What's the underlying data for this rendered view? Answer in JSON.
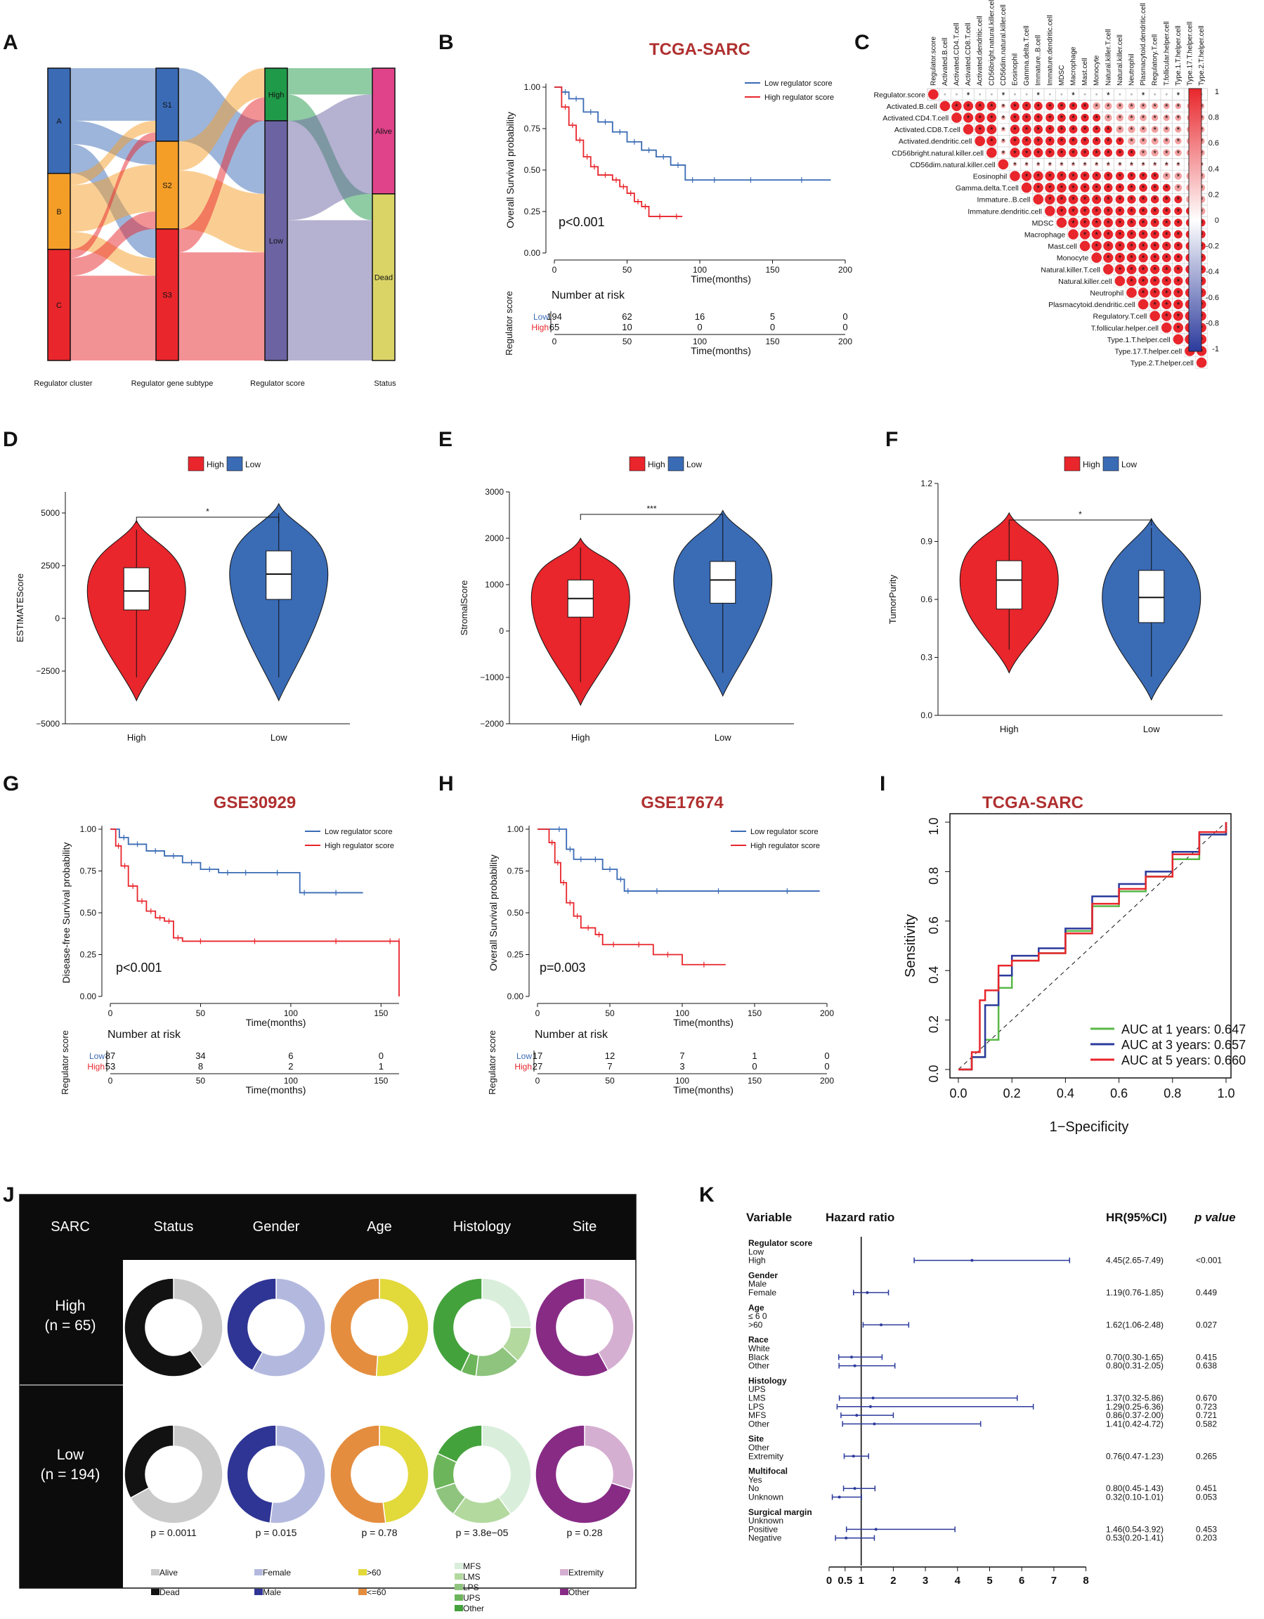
{
  "panels": {
    "A": {
      "label": "A",
      "axis_labels": [
        "Regulator cluster",
        "Regulator gene subtype",
        "Regulator score",
        "Status"
      ],
      "nodes": {
        "c1": [
          "A",
          "B",
          "C"
        ],
        "c2": [
          "S1",
          "S2",
          "S3"
        ],
        "c3": [
          "High",
          "Low"
        ],
        "c4": [
          "Alive",
          "Dead"
        ]
      }
    },
    "B": {
      "label": "B",
      "title": "TCGA-SARC",
      "ylabel": "Overall Survival probability",
      "xlabel": "Time(months)",
      "pvalue": "p<0.001",
      "legend": [
        "Low regulator score",
        "High regulator score"
      ],
      "risk_title": "Number at risk",
      "risk_ylabel": "Regulator score",
      "risk_groups": [
        "Low",
        "High"
      ],
      "risk_low": [
        "194",
        "62",
        "16",
        "5",
        "0"
      ],
      "risk_high": [
        "65",
        "10",
        "0",
        "0",
        "0"
      ],
      "xticks": [
        "0",
        "50",
        "100",
        "150",
        "200"
      ],
      "yticks": [
        "0.00",
        "0.25",
        "0.50",
        "0.75",
        "1.00"
      ]
    },
    "C": {
      "label": "C",
      "cells": [
        "Regulator.score",
        "Activated.B.cell",
        "Activated.CD4.T.cell",
        "Activated.CD8.T.cell",
        "Activated.dendritic.cell",
        "CD56bright.natural.killer.cell",
        "CD56dim.natural.killer.cell",
        "Eosinophil",
        "Gamma.delta.T.cell",
        "Immature..B.cell",
        "Immature.dendritic.cell",
        "MDSC",
        "Macrophage",
        "Mast.cell",
        "Monocyte",
        "Natural.killer.T.cell",
        "Natural.killer.cell",
        "Neutrophil",
        "Plasmacytoid.dendritic.cell",
        "Regulatory.T.cell",
        "T.follicular.helper.cell",
        "Type.1.T.helper.cell",
        "Type.17.T.helper.cell",
        "Type.2.T.helper.cell"
      ],
      "colorbar_ticks": [
        "1",
        "0.8",
        "0.6",
        "0.4",
        "0.2",
        "0",
        "-0.2",
        "-0.4",
        "-0.6",
        "-0.8",
        "-1"
      ]
    },
    "D": {
      "label": "D",
      "ylabel": "ESTIMATEScore",
      "sig": "*",
      "legend": [
        "High",
        "Low"
      ],
      "xcats": [
        "High",
        "Low"
      ],
      "yticks": [
        "5000",
        "2500",
        "0",
        "−2500",
        "−5000"
      ]
    },
    "E": {
      "label": "E",
      "ylabel": "StromalScore",
      "sig": "***",
      "legend": [
        "High",
        "Low"
      ],
      "xcats": [
        "High",
        "Low"
      ],
      "yticks": [
        "3000",
        "2000",
        "1000",
        "0",
        "−1000",
        "−2000"
      ]
    },
    "F": {
      "label": "F",
      "ylabel": "TumorPurity",
      "sig": "*",
      "legend": [
        "High",
        "Low"
      ],
      "xcats": [
        "High",
        "Low"
      ],
      "yticks": [
        "1.2",
        "0.9",
        "0.6",
        "0.3",
        "0.0"
      ]
    },
    "G": {
      "label": "G",
      "title": "GSE30929",
      "ylabel": "Disease-free Survival probability",
      "xlabel": "Time(months)",
      "pvalue": "p<0.001",
      "legend": [
        "Low regulator score",
        "High regulator score"
      ],
      "risk_title": "Number at risk",
      "risk_ylabel": "Regulator score",
      "risk_groups": [
        "Low",
        "High"
      ],
      "risk_low": [
        "87",
        "34",
        "6",
        "0"
      ],
      "risk_high": [
        "53",
        "8",
        "2",
        "1"
      ],
      "xticks": [
        "0",
        "50",
        "100",
        "150"
      ],
      "yticks": [
        "0.00",
        "0.25",
        "0.50",
        "0.75",
        "1.00"
      ]
    },
    "H": {
      "label": "H",
      "title": "GSE17674",
      "ylabel": "Overall Survival probability",
      "xlabel": "Time(months)",
      "pvalue": "p=0.003",
      "legend": [
        "Low regulator score",
        "High regulator score"
      ],
      "risk_title": "Number at risk",
      "risk_ylabel": "Regulator score",
      "risk_groups": [
        "Low",
        "High"
      ],
      "risk_low": [
        "17",
        "12",
        "7",
        "1",
        "0"
      ],
      "risk_high": [
        "27",
        "7",
        "3",
        "0",
        "0"
      ],
      "xticks": [
        "0",
        "50",
        "100",
        "150",
        "200"
      ],
      "yticks": [
        "0.00",
        "0.25",
        "0.50",
        "0.75",
        "1.00"
      ]
    },
    "I": {
      "label": "I",
      "title": "TCGA-SARC",
      "xlabel": "1−Specificity",
      "ylabel": "Sensitivity",
      "legend": [
        "AUC at 1 years: 0.647",
        "AUC at 3 years: 0.657",
        "AUC at 5 years: 0.660"
      ],
      "ticks": [
        "0.0",
        "0.2",
        "0.4",
        "0.6",
        "0.8",
        "1.0"
      ]
    },
    "J": {
      "label": "J",
      "header": [
        "SARC",
        "Status",
        "Gender",
        "Age",
        "Histology",
        "Site"
      ],
      "rows": [
        [
          "High",
          "(n = 65)"
        ],
        [
          "Low",
          "(n = 194)"
        ]
      ],
      "pvalues": [
        "p = 0.0011",
        "p = 0.015",
        "p = 0.78",
        "p = 3.8e−05",
        "p = 0.28"
      ],
      "legend_status": [
        "Alive",
        "Dead"
      ],
      "legend_gender": [
        "Female",
        "Male"
      ],
      "legend_age": [
        ">60",
        "<=60"
      ],
      "legend_hist": [
        "MFS",
        "LMS",
        "LPS",
        "UPS",
        "Other"
      ],
      "legend_site": [
        "Extremity",
        "Other"
      ]
    },
    "K": {
      "label": "K",
      "headers": [
        "Variable",
        "Hazard ratio",
        "HR(95%CI)",
        "p value"
      ],
      "xticks": [
        "0",
        "0.5",
        "1",
        "2",
        "3",
        "4",
        "5",
        "6",
        "7",
        "8"
      ]
    }
  },
  "chart_data": [
    {
      "panel": "B",
      "type": "line",
      "title": "TCGA-SARC",
      "xlabel": "Time(months)",
      "ylabel": "Overall Survival probability",
      "xlim": [
        0,
        200
      ],
      "ylim": [
        0,
        1
      ],
      "series": [
        {
          "name": "Low regulator score",
          "color": "#3a6bb5",
          "x": [
            0,
            5,
            10,
            20,
            30,
            40,
            50,
            60,
            70,
            80,
            90,
            100,
            120,
            150,
            190
          ],
          "y": [
            1,
            0.97,
            0.93,
            0.85,
            0.79,
            0.73,
            0.67,
            0.62,
            0.58,
            0.53,
            0.44,
            0.44,
            0.44,
            0.44,
            0.44
          ]
        },
        {
          "name": "High regulator score",
          "color": "#e8262c",
          "x": [
            0,
            5,
            10,
            15,
            20,
            25,
            30,
            40,
            45,
            50,
            55,
            60,
            65,
            80,
            88
          ],
          "y": [
            1,
            0.88,
            0.77,
            0.68,
            0.58,
            0.52,
            0.47,
            0.44,
            0.4,
            0.36,
            0.31,
            0.28,
            0.22,
            0.22,
            0.22
          ]
        }
      ]
    },
    {
      "panel": "G",
      "type": "line",
      "title": "GSE30929",
      "xlabel": "Time(months)",
      "ylabel": "Disease-free Survival probability",
      "xlim": [
        0,
        160
      ],
      "ylim": [
        0,
        1
      ],
      "series": [
        {
          "name": "Low regulator score",
          "color": "#3a6bb5",
          "x": [
            0,
            5,
            10,
            20,
            30,
            40,
            50,
            60,
            70,
            80,
            105,
            110,
            140
          ],
          "y": [
            1,
            0.95,
            0.91,
            0.87,
            0.84,
            0.8,
            0.76,
            0.74,
            0.74,
            0.74,
            0.62,
            0.62,
            0.62
          ]
        },
        {
          "name": "High regulator score",
          "color": "#e8262c",
          "x": [
            0,
            3,
            6,
            10,
            15,
            20,
            25,
            30,
            35,
            40,
            60,
            100,
            150,
            160,
            160
          ],
          "y": [
            1,
            0.9,
            0.78,
            0.66,
            0.57,
            0.51,
            0.47,
            0.45,
            0.35,
            0.33,
            0.33,
            0.33,
            0.33,
            0.33,
            0
          ]
        }
      ]
    },
    {
      "panel": "H",
      "type": "line",
      "title": "GSE17674",
      "xlabel": "Time(months)",
      "ylabel": "Overall Survival probability",
      "xlim": [
        0,
        200
      ],
      "ylim": [
        0,
        1
      ],
      "series": [
        {
          "name": "Low regulator score",
          "color": "#3a6bb5",
          "x": [
            0,
            10,
            20,
            25,
            35,
            45,
            55,
            60,
            65,
            100,
            150,
            195
          ],
          "y": [
            1,
            1,
            0.88,
            0.82,
            0.82,
            0.76,
            0.7,
            0.63,
            0.63,
            0.63,
            0.63,
            0.63
          ]
        },
        {
          "name": "High regulator score",
          "color": "#e8262c",
          "x": [
            0,
            8,
            12,
            16,
            20,
            25,
            30,
            40,
            45,
            60,
            80,
            100,
            130
          ],
          "y": [
            1,
            0.92,
            0.8,
            0.68,
            0.56,
            0.48,
            0.41,
            0.37,
            0.31,
            0.31,
            0.25,
            0.19,
            0.19
          ]
        }
      ]
    },
    {
      "panel": "I",
      "type": "line",
      "title": "TCGA-SARC",
      "xlabel": "1−Specificity",
      "ylabel": "Sensitivity",
      "xlim": [
        0,
        1
      ],
      "ylim": [
        0,
        1
      ],
      "series": [
        {
          "name": "AUC at 1 years: 0.647",
          "color": "#59b847",
          "x": [
            0,
            0.05,
            0.1,
            0.15,
            0.2,
            0.3,
            0.4,
            0.5,
            0.6,
            0.7,
            0.8,
            0.9,
            1
          ],
          "y": [
            0,
            0.05,
            0.12,
            0.33,
            0.44,
            0.47,
            0.56,
            0.66,
            0.72,
            0.78,
            0.85,
            0.95,
            1
          ]
        },
        {
          "name": "AUC at 3 years: 0.657",
          "color": "#2b3a9c",
          "x": [
            0,
            0.05,
            0.1,
            0.15,
            0.2,
            0.3,
            0.4,
            0.5,
            0.6,
            0.7,
            0.8,
            0.9,
            1
          ],
          "y": [
            0,
            0.05,
            0.26,
            0.38,
            0.46,
            0.49,
            0.57,
            0.7,
            0.75,
            0.8,
            0.88,
            0.95,
            1
          ]
        },
        {
          "name": "AUC at 5 years: 0.660",
          "color": "#e8262c",
          "x": [
            0,
            0.05,
            0.08,
            0.1,
            0.15,
            0.2,
            0.3,
            0.4,
            0.5,
            0.6,
            0.7,
            0.8,
            0.9,
            1
          ],
          "y": [
            0,
            0.07,
            0.28,
            0.32,
            0.42,
            0.44,
            0.47,
            0.55,
            0.67,
            0.73,
            0.78,
            0.87,
            0.96,
            1
          ]
        }
      ]
    },
    {
      "panel": "D",
      "type": "violin",
      "ylabel": "ESTIMATEScore",
      "ylim": [
        -5000,
        6000
      ],
      "categories": [
        "High",
        "Low"
      ],
      "boxes": [
        {
          "q1": 400,
          "median": 1300,
          "q3": 2400,
          "min": -2800,
          "max": 4200
        },
        {
          "q1": 900,
          "median": 2100,
          "q3": 3200,
          "min": -2800,
          "max": 5000
        }
      ]
    },
    {
      "panel": "E",
      "type": "violin",
      "ylabel": "StromalScore",
      "ylim": [
        -2000,
        3000
      ],
      "categories": [
        "High",
        "Low"
      ],
      "boxes": [
        {
          "q1": 300,
          "median": 700,
          "q3": 1100,
          "min": -1100,
          "max": 1800
        },
        {
          "q1": 600,
          "median": 1100,
          "q3": 1500,
          "min": -900,
          "max": 2400
        }
      ]
    },
    {
      "panel": "F",
      "type": "violin",
      "ylabel": "TumorPurity",
      "ylim": [
        0,
        1.2
      ],
      "categories": [
        "High",
        "Low"
      ],
      "boxes": [
        {
          "q1": 0.55,
          "median": 0.7,
          "q3": 0.8,
          "min": 0.34,
          "max": 1.0
        },
        {
          "q1": 0.48,
          "median": 0.61,
          "q3": 0.75,
          "min": 0.2,
          "max": 0.97
        }
      ]
    },
    {
      "panel": "J",
      "type": "pie",
      "rows": [
        {
          "group": "High",
          "status": [
            40,
            60
          ],
          "gender": [
            58,
            42
          ],
          "age": [
            51,
            49
          ],
          "histology": [
            25,
            12,
            15,
            5,
            43
          ],
          "site": [
            42,
            58
          ]
        },
        {
          "group": "Low",
          "status": [
            67,
            33
          ],
          "gender": [
            52,
            48
          ],
          "age": [
            48,
            52
          ],
          "histology": [
            40,
            20,
            10,
            12,
            18
          ],
          "site": [
            30,
            70
          ]
        }
      ]
    },
    {
      "panel": "K",
      "type": "forest",
      "rows": [
        {
          "group": "Regulator score",
          "items": [
            [
              "Low",
              "",
              "",
              null
            ],
            [
              "High",
              "4.45(2.65-7.49)",
              "<0.001",
              [
                4.45,
                2.65,
                7.49
              ]
            ]
          ]
        },
        {
          "group": "Gender",
          "items": [
            [
              "Male",
              "",
              "",
              null
            ],
            [
              "Female",
              "1.19(0.76-1.85)",
              "0.449",
              [
                1.19,
                0.76,
                1.85
              ]
            ]
          ]
        },
        {
          "group": "Age",
          "items": [
            [
              "≤ 6 0",
              "",
              "",
              null
            ],
            [
              ">60",
              "1.62(1.06-2.48)",
              "0.027",
              [
                1.62,
                1.06,
                2.48
              ]
            ]
          ]
        },
        {
          "group": "Race",
          "items": [
            [
              "White",
              "",
              "",
              null
            ],
            [
              "Black",
              "0.70(0.30-1.65)",
              "0.415",
              [
                0.7,
                0.3,
                1.65
              ]
            ],
            [
              "Other",
              "0.80(0.31-2.05)",
              "0.638",
              [
                0.8,
                0.31,
                2.05
              ]
            ]
          ]
        },
        {
          "group": "Histology",
          "items": [
            [
              "UPS",
              "",
              "",
              null
            ],
            [
              "LMS",
              "1.37(0.32-5.86)",
              "0.670",
              [
                1.37,
                0.32,
                5.86
              ]
            ],
            [
              "LPS",
              "1.29(0.25-6.36)",
              "0.723",
              [
                1.29,
                0.25,
                6.36
              ]
            ],
            [
              "MFS",
              "0.86(0.37-2.00)",
              "0.721",
              [
                0.86,
                0.37,
                2.0
              ]
            ],
            [
              "Other",
              "1.41(0.42-4.72)",
              "0.582",
              [
                1.41,
                0.42,
                4.72
              ]
            ]
          ]
        },
        {
          "group": "Site",
          "items": [
            [
              "Other",
              "",
              "",
              null
            ],
            [
              "Extremity",
              "0.76(0.47-1.23)",
              "0.265",
              [
                0.76,
                0.47,
                1.23
              ]
            ]
          ]
        },
        {
          "group": "Multifocal",
          "items": [
            [
              "Yes",
              "",
              "",
              null
            ],
            [
              "No",
              "0.80(0.45-1.43)",
              "0.451",
              [
                0.8,
                0.45,
                1.43
              ]
            ],
            [
              "Unknown",
              "0.32(0.10-1.01)",
              "0.053",
              [
                0.32,
                0.1,
                1.01
              ]
            ]
          ]
        },
        {
          "group": "Surgical margin",
          "items": [
            [
              "Unknown",
              "",
              "",
              null
            ],
            [
              "Positive",
              "1.46(0.54-3.92)",
              "0.453",
              [
                1.46,
                0.54,
                3.92
              ]
            ],
            [
              "Negative",
              "0.53(0.20-1.41)",
              "0.203",
              [
                0.53,
                0.2,
                1.41
              ]
            ]
          ]
        }
      ]
    }
  ]
}
